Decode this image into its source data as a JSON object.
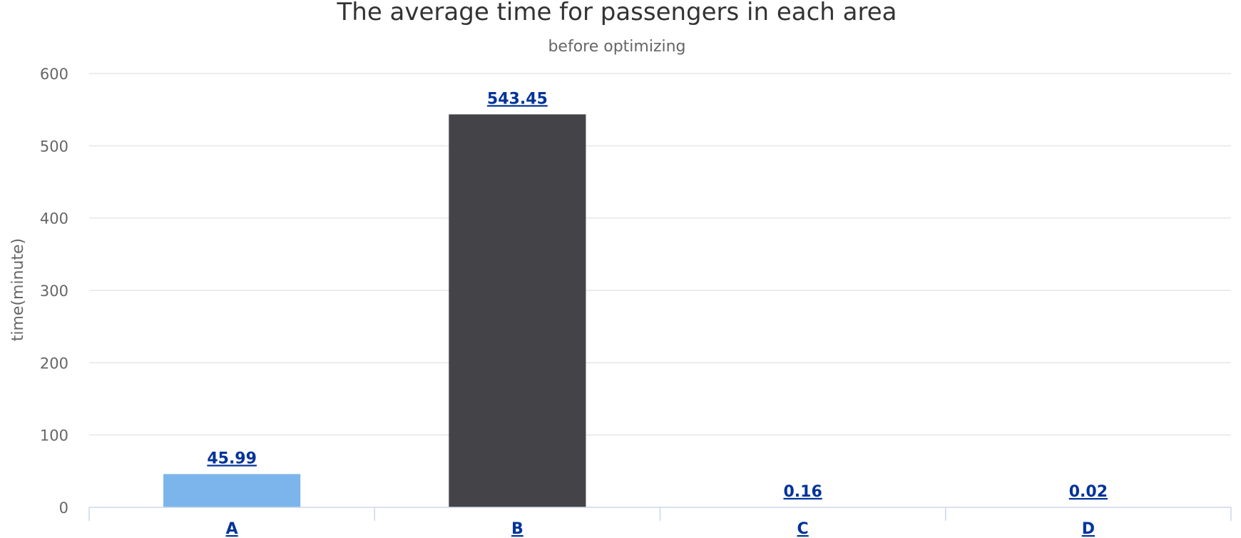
{
  "chart_data": {
    "type": "bar",
    "title": "The average time for passengers in each area",
    "subtitle": "before optimizing",
    "xlabel": "",
    "ylabel": "time(minute)",
    "categories": [
      "A",
      "B",
      "C",
      "D"
    ],
    "values": [
      45.99,
      543.45,
      0.16,
      0.02
    ],
    "data_labels": [
      "45.99",
      "543.45",
      "0.16",
      "0.02"
    ],
    "bar_colors": [
      "#7cb5ec",
      "#434348",
      "#90ed7d",
      "#f7a35c"
    ],
    "ylim": [
      0,
      600
    ],
    "yticks": [
      0,
      100,
      200,
      300,
      400,
      500,
      600
    ],
    "grid": true,
    "legend": "none"
  }
}
